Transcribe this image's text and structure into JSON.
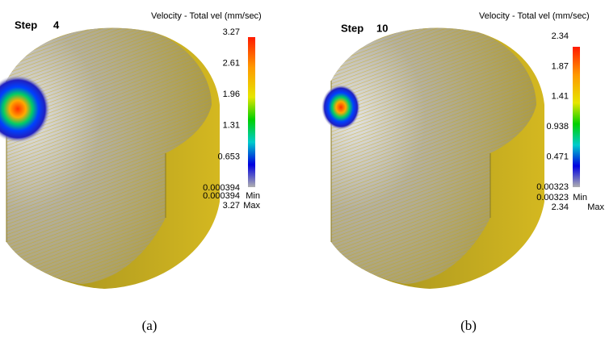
{
  "panels": [
    {
      "step_label": "Step",
      "step": "4",
      "legend_title": "Velocity - Total vel (mm/sec)",
      "colorbar_labels": [
        "3.27",
        "2.61",
        "1.96",
        "1.31",
        "0.653",
        "0.000394"
      ],
      "min_value": "0.000394",
      "min_label": "Min",
      "max_value": "3.27",
      "max_label": "Max",
      "caption": "(a)"
    },
    {
      "step_label": "Step",
      "step": "10",
      "legend_title": "Velocity - Total vel (mm/sec)",
      "colorbar_labels": [
        "2.34",
        "1.87",
        "1.41",
        "0.938",
        "0.471",
        "0.00323"
      ],
      "min_value": "0.00323",
      "min_label": "Min",
      "max_value": "2.34",
      "max_label": "Max",
      "caption": "(b)"
    }
  ]
}
